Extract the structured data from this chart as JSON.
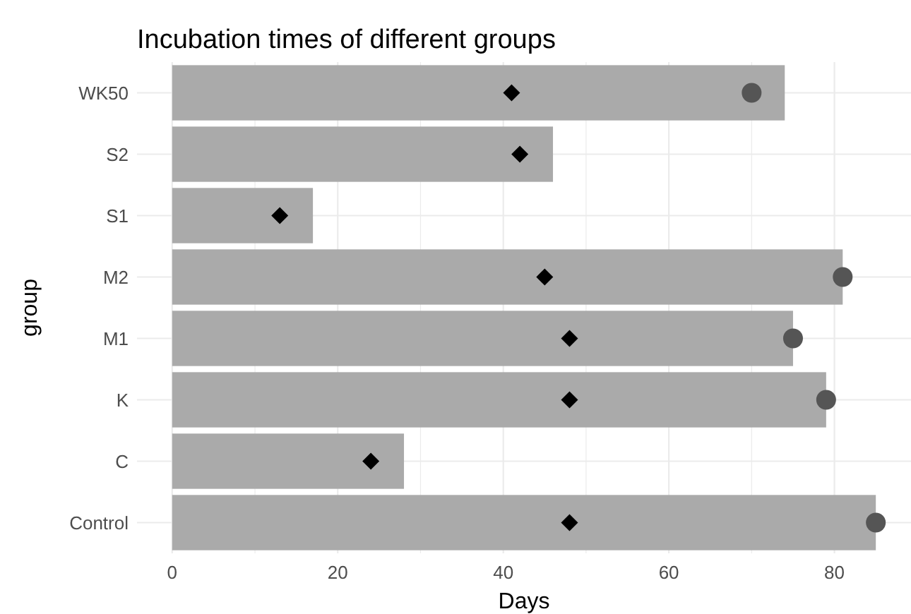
{
  "chart_data": {
    "type": "bar",
    "orientation": "horizontal",
    "title": "Incubation times of different groups",
    "xlabel": "Days",
    "ylabel": "group",
    "categories": [
      "WK50",
      "S2",
      "S1",
      "M2",
      "M1",
      "K",
      "C",
      "Control"
    ],
    "series": [
      {
        "type": "bar",
        "color": "#aaaaaa",
        "values": [
          74,
          46,
          17,
          81,
          75,
          79,
          28,
          85
        ]
      },
      {
        "type": "scatter",
        "marker": "diamond",
        "color": "#000000",
        "values": [
          41,
          42,
          13,
          45,
          48,
          48,
          24,
          48
        ]
      },
      {
        "type": "scatter",
        "marker": "circle",
        "color": "#555555",
        "values": [
          70,
          null,
          null,
          81,
          75,
          79,
          null,
          85
        ]
      }
    ],
    "xlim": [
      -4.25,
      89.25
    ],
    "xticks": [
      0,
      {
        "value": 10,
        "label": null
      },
      20,
      {
        "value": 30,
        "label": null
      },
      40,
      {
        "value": 50,
        "label": null
      },
      60,
      {
        "value": 70,
        "label": null
      },
      80
    ],
    "grid": true
  }
}
